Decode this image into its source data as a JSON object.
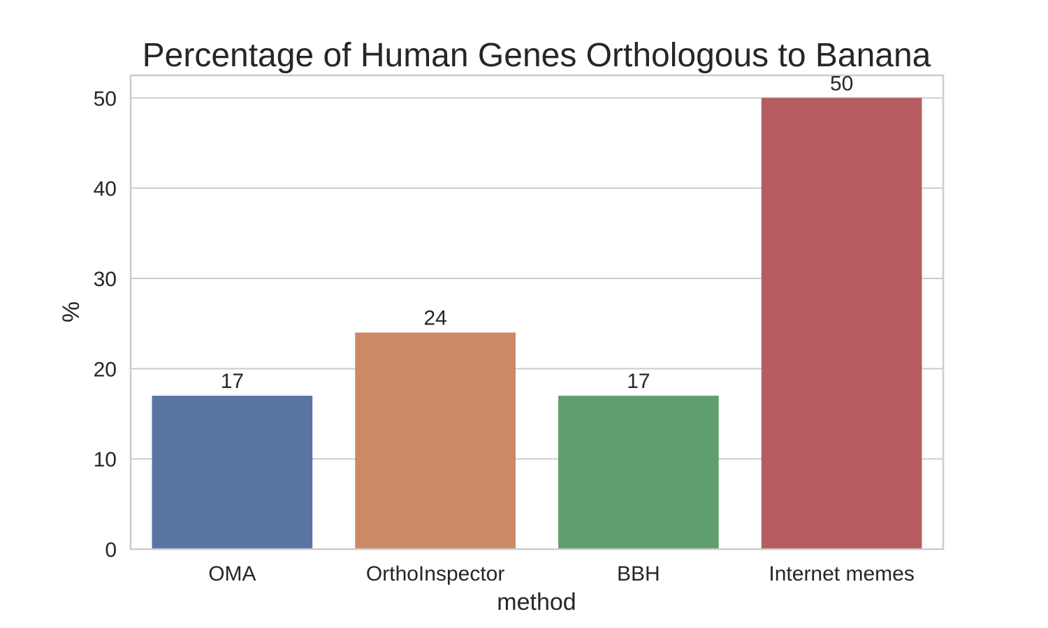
{
  "chart_data": {
    "type": "bar",
    "title": "Percentage of Human Genes Orthologous to Banana",
    "xlabel": "method",
    "ylabel": "%",
    "categories": [
      "OMA",
      "OrthoInspector",
      "BBH",
      "Internet memes"
    ],
    "values": [
      17,
      24,
      17,
      50
    ],
    "data_labels": [
      "17",
      "24",
      "17",
      "50"
    ],
    "colors": [
      "#5875a4",
      "#cc8963",
      "#5f9e6e",
      "#b55d60"
    ],
    "ylim": [
      0,
      52.5
    ],
    "yticks": [
      0,
      10,
      20,
      30,
      40,
      50
    ],
    "grid": true,
    "legend": "none"
  }
}
